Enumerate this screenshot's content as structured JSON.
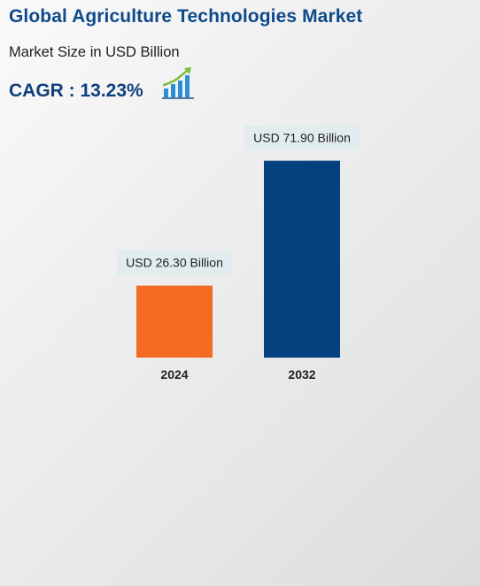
{
  "header": {
    "title": "Global Agriculture Technologies Market",
    "subtitle": "Market Size in USD Billion",
    "cagr": "CAGR : 13.23%",
    "icon": "growth-chart-icon"
  },
  "colors": {
    "title": "#0f4a8a",
    "cagr": "#0f3f7e",
    "bar_2024": "#f26b21",
    "bar_2032": "#05417f",
    "label_bg": "#e2ecef"
  },
  "chart_data": {
    "type": "bar",
    "categories": [
      "2024",
      "2032"
    ],
    "values": [
      26.3,
      71.9
    ],
    "value_labels": [
      "USD 26.30 Billion",
      "USD 71.90 Billion"
    ],
    "bar_colors": [
      "#f26b21",
      "#05417f"
    ],
    "title": "Global Agriculture Technologies Market",
    "subtitle": "Market Size in USD Billion",
    "xlabel": "",
    "ylabel": "",
    "ylim": [
      0,
      75
    ],
    "grid": false,
    "legend": "none"
  }
}
